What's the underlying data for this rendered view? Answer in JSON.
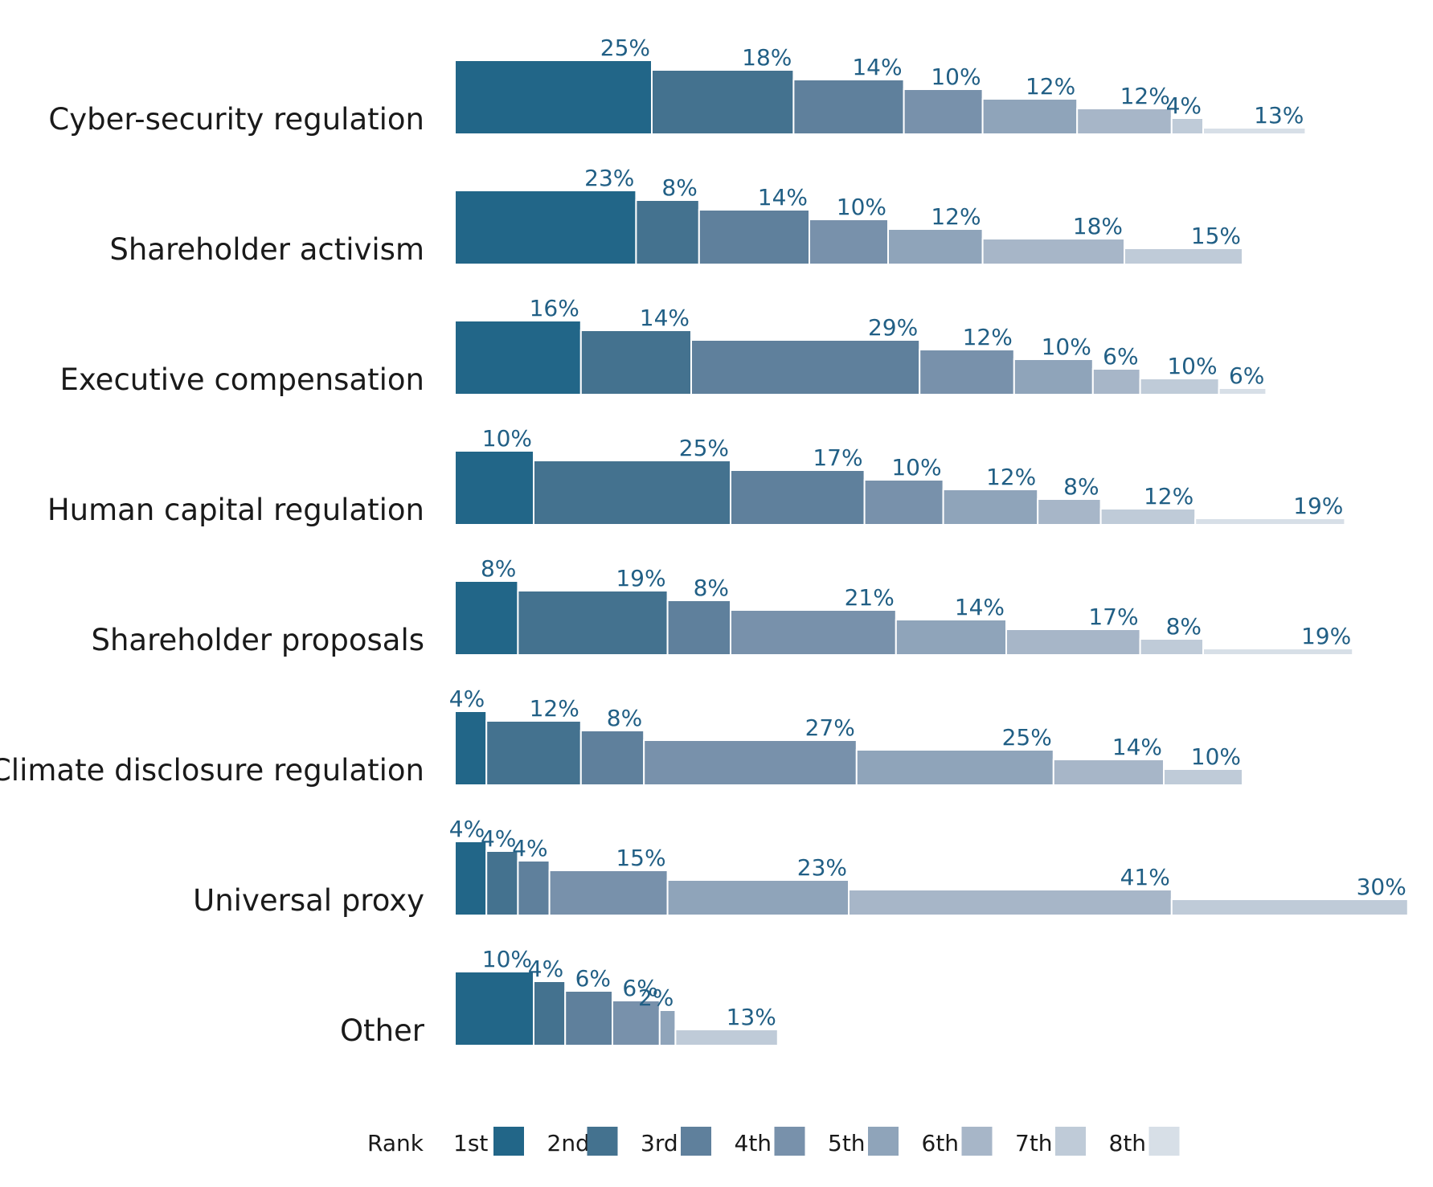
{
  "chart_data": {
    "type": "bar",
    "subtype": "stacked-staircase",
    "categories": [
      "Cyber-security regulation",
      "Shareholder activism",
      "Executive compensation",
      "Human capital regulation",
      "Shareholder proposals",
      "Climate disclosure regulation",
      "Universal proxy",
      "Other"
    ],
    "series": [
      {
        "name": "1st",
        "color": "#226688",
        "values": [
          25,
          23,
          16,
          10,
          8,
          4,
          4,
          10
        ]
      },
      {
        "name": "2nd",
        "color": "#44728f",
        "values": [
          18,
          8,
          14,
          25,
          19,
          12,
          4,
          4
        ]
      },
      {
        "name": "3rd",
        "color": "#5f809c",
        "values": [
          14,
          14,
          29,
          17,
          8,
          8,
          4,
          6
        ]
      },
      {
        "name": "4th",
        "color": "#7891ab",
        "values": [
          10,
          10,
          12,
          10,
          21,
          27,
          15,
          6
        ]
      },
      {
        "name": "5th",
        "color": "#8fa4ba",
        "values": [
          12,
          12,
          10,
          12,
          14,
          25,
          23,
          2
        ]
      },
      {
        "name": "6th",
        "color": "#a7b6c8",
        "values": [
          12,
          18,
          6,
          8,
          17,
          14,
          41,
          null
        ]
      },
      {
        "name": "7th",
        "color": "#bfcbd8",
        "values": [
          4,
          15,
          10,
          12,
          8,
          10,
          30,
          13
        ]
      },
      {
        "name": "8th",
        "color": "#d7dfe7",
        "values": [
          13,
          null,
          6,
          19,
          19,
          null,
          null,
          null
        ]
      }
    ],
    "value_suffix": "%",
    "legend": {
      "title": "Rank",
      "position": "bottom"
    },
    "title": "",
    "xlabel": "",
    "ylabel": ""
  }
}
